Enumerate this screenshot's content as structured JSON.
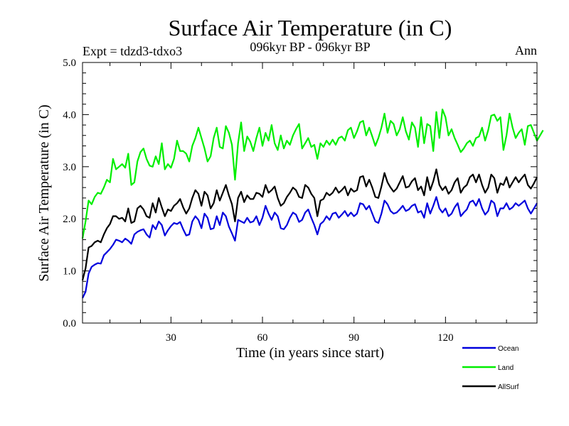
{
  "chart_data": {
    "type": "line",
    "title": "Surface Air Temperature (in C)",
    "subtitle": "096kyr BP - 096kyr BP",
    "experiment": "Expt = tdzd3-tdxo3",
    "season": "Ann",
    "xlabel": "Time (in years since start)",
    "ylabel": "Surface Air Temperature (in C)",
    "xlim": [
      1,
      150
    ],
    "ylim": [
      0,
      5
    ],
    "xticks": [
      30,
      60,
      90,
      120
    ],
    "xtick_labels": [
      "30",
      "60",
      "90",
      "120"
    ],
    "yticks": [
      0,
      1,
      2,
      3,
      4,
      5
    ],
    "ytick_labels": [
      "0.0",
      "1.0",
      "2.0",
      "3.0",
      "4.0",
      "5.0"
    ],
    "legend_position": "bottom-right",
    "series": [
      {
        "name": "Ocean",
        "color": "#0000dd",
        "values": [
          0.48,
          0.6,
          0.95,
          1.08,
          1.12,
          1.15,
          1.14,
          1.3,
          1.36,
          1.42,
          1.5,
          1.6,
          1.58,
          1.55,
          1.62,
          1.58,
          1.52,
          1.7,
          1.75,
          1.78,
          1.8,
          1.7,
          1.64,
          1.88,
          1.8,
          1.95,
          1.88,
          1.68,
          1.78,
          1.86,
          1.92,
          1.9,
          1.94,
          1.8,
          1.68,
          1.7,
          1.95,
          2.05,
          1.98,
          1.82,
          2.1,
          2.02,
          1.8,
          1.82,
          2.05,
          1.88,
          2.12,
          2.05,
          1.85,
          1.72,
          1.58,
          1.98,
          1.95,
          1.92,
          2.02,
          1.93,
          1.95,
          2.05,
          1.88,
          2.02,
          2.25,
          2.1,
          1.98,
          2.12,
          2.05,
          1.82,
          1.8,
          1.88,
          2.02,
          2.12,
          2.08,
          1.94,
          1.98,
          2.12,
          2.18,
          2.02,
          1.88,
          1.7,
          1.9,
          1.95,
          2.05,
          1.98,
          2.1,
          2.12,
          2.02,
          2.08,
          2.15,
          2.05,
          2.12,
          2.05,
          2.1,
          2.3,
          2.28,
          2.18,
          2.25,
          2.1,
          1.95,
          1.92,
          2.1,
          2.35,
          2.28,
          2.15,
          2.1,
          2.12,
          2.18,
          2.25,
          2.15,
          2.18,
          2.25,
          2.28,
          2.12,
          2.15,
          2.02,
          2.3,
          2.1,
          2.25,
          2.42,
          2.2,
          2.12,
          2.2,
          2.05,
          2.1,
          2.22,
          2.3,
          2.05,
          2.12,
          2.18,
          2.32,
          2.35,
          2.25,
          2.38,
          2.2,
          2.08,
          2.15,
          2.35,
          2.3,
          2.05,
          2.2,
          2.2,
          2.3,
          2.18,
          2.22,
          2.3,
          2.25,
          2.3,
          2.35,
          2.2,
          2.1,
          2.2,
          2.3
        ]
      },
      {
        "name": "Land",
        "color": "#00ee00",
        "values": [
          1.62,
          1.95,
          2.35,
          2.28,
          2.42,
          2.5,
          2.48,
          2.6,
          2.75,
          2.7,
          3.15,
          2.95,
          3.0,
          3.05,
          2.98,
          3.25,
          2.65,
          2.7,
          3.1,
          3.28,
          3.35,
          3.15,
          3.02,
          3.0,
          3.2,
          3.05,
          3.45,
          2.95,
          3.05,
          2.98,
          3.15,
          3.5,
          3.3,
          3.3,
          3.25,
          3.1,
          3.4,
          3.55,
          3.75,
          3.55,
          3.35,
          3.1,
          3.2,
          3.55,
          3.75,
          3.38,
          3.35,
          3.78,
          3.65,
          3.42,
          2.75,
          3.45,
          3.85,
          3.3,
          3.58,
          3.48,
          3.3,
          3.55,
          3.75,
          3.4,
          3.65,
          3.5,
          3.8,
          3.45,
          3.32,
          3.6,
          3.35,
          3.5,
          3.42,
          3.6,
          3.72,
          3.82,
          3.35,
          3.45,
          3.55,
          3.38,
          3.42,
          3.15,
          3.45,
          3.38,
          3.5,
          3.42,
          3.52,
          3.42,
          3.55,
          3.58,
          3.5,
          3.7,
          3.75,
          3.55,
          3.68,
          3.85,
          3.88,
          3.6,
          3.75,
          3.58,
          3.4,
          3.55,
          3.75,
          4.02,
          3.65,
          3.88,
          3.82,
          3.6,
          3.72,
          3.95,
          3.68,
          3.52,
          3.85,
          3.75,
          3.38,
          3.95,
          3.45,
          3.82,
          3.78,
          3.3,
          4.05,
          3.55,
          4.1,
          3.95,
          3.6,
          3.72,
          3.55,
          3.42,
          3.28,
          3.35,
          3.45,
          3.5,
          3.4,
          3.55,
          3.58,
          3.75,
          3.5,
          3.7,
          3.98,
          4.0,
          3.88,
          3.95,
          3.32,
          3.6,
          4.02,
          3.75,
          3.55,
          3.65,
          3.72,
          3.42,
          3.78,
          3.8,
          3.65,
          3.5,
          3.6,
          3.7
        ]
      },
      {
        "name": "AllSurf",
        "color": "#000000",
        "values": [
          0.82,
          1.05,
          1.45,
          1.48,
          1.55,
          1.58,
          1.55,
          1.7,
          1.82,
          1.9,
          2.05,
          2.05,
          2.0,
          2.02,
          1.95,
          2.2,
          1.92,
          1.95,
          2.2,
          2.25,
          2.18,
          2.05,
          2.02,
          2.3,
          2.12,
          2.4,
          2.22,
          2.05,
          2.18,
          2.15,
          2.25,
          2.3,
          2.38,
          2.22,
          2.1,
          2.2,
          2.4,
          2.55,
          2.48,
          2.25,
          2.52,
          2.45,
          2.2,
          2.3,
          2.55,
          2.35,
          2.5,
          2.65,
          2.45,
          2.28,
          1.95,
          2.4,
          2.52,
          2.32,
          2.45,
          2.38,
          2.38,
          2.5,
          2.48,
          2.42,
          2.65,
          2.5,
          2.55,
          2.62,
          2.4,
          2.25,
          2.3,
          2.42,
          2.5,
          2.6,
          2.55,
          2.42,
          2.4,
          2.65,
          2.6,
          2.48,
          2.4,
          2.05,
          2.35,
          2.38,
          2.5,
          2.45,
          2.5,
          2.6,
          2.5,
          2.55,
          2.62,
          2.45,
          2.58,
          2.52,
          2.55,
          2.8,
          2.82,
          2.62,
          2.75,
          2.6,
          2.42,
          2.4,
          2.62,
          2.88,
          2.7,
          2.6,
          2.52,
          2.58,
          2.7,
          2.82,
          2.6,
          2.62,
          2.72,
          2.78,
          2.55,
          2.62,
          2.45,
          2.8,
          2.55,
          2.72,
          2.95,
          2.65,
          2.55,
          2.62,
          2.48,
          2.55,
          2.7,
          2.78,
          2.5,
          2.6,
          2.65,
          2.8,
          2.85,
          2.7,
          2.85,
          2.65,
          2.5,
          2.6,
          2.85,
          2.78,
          2.5,
          2.68,
          2.65,
          2.8,
          2.6,
          2.7,
          2.8,
          2.7,
          2.78,
          2.85,
          2.65,
          2.58,
          2.68,
          2.8
        ]
      }
    ]
  }
}
